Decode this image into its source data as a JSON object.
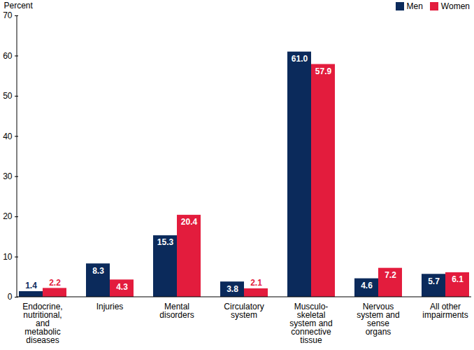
{
  "chart_data": {
    "type": "bar",
    "categories": [
      "Endocrine, nutritional, and metabolic diseases",
      "Injuries",
      "Mental disorders",
      "Circulatory system",
      "Musculo-skeletal system and connective tissue",
      "Nervous system and sense organs",
      "All other impairments"
    ],
    "series": [
      {
        "name": "Men",
        "color": "#0b2a5b",
        "values": [
          1.4,
          8.3,
          15.3,
          3.8,
          61.0,
          4.6,
          5.7
        ],
        "value_labels": [
          "1.4",
          "8.3",
          "15.3",
          "3.8",
          "61.0",
          "4.6",
          "5.7"
        ]
      },
      {
        "name": "Women",
        "color": "#e31c3d",
        "values": [
          2.2,
          4.3,
          20.4,
          2.1,
          57.9,
          7.2,
          6.1
        ],
        "value_labels": [
          "2.2",
          "4.3",
          "20.4",
          "2.1",
          "57.9",
          "7.2",
          "6.1"
        ]
      }
    ],
    "y_label": "Percent",
    "ylim": [
      0,
      70
    ],
    "yticks": [
      0,
      10,
      20,
      30,
      40,
      50,
      60,
      70
    ],
    "grid": false,
    "legend": "top-right",
    "data_labels": true
  }
}
